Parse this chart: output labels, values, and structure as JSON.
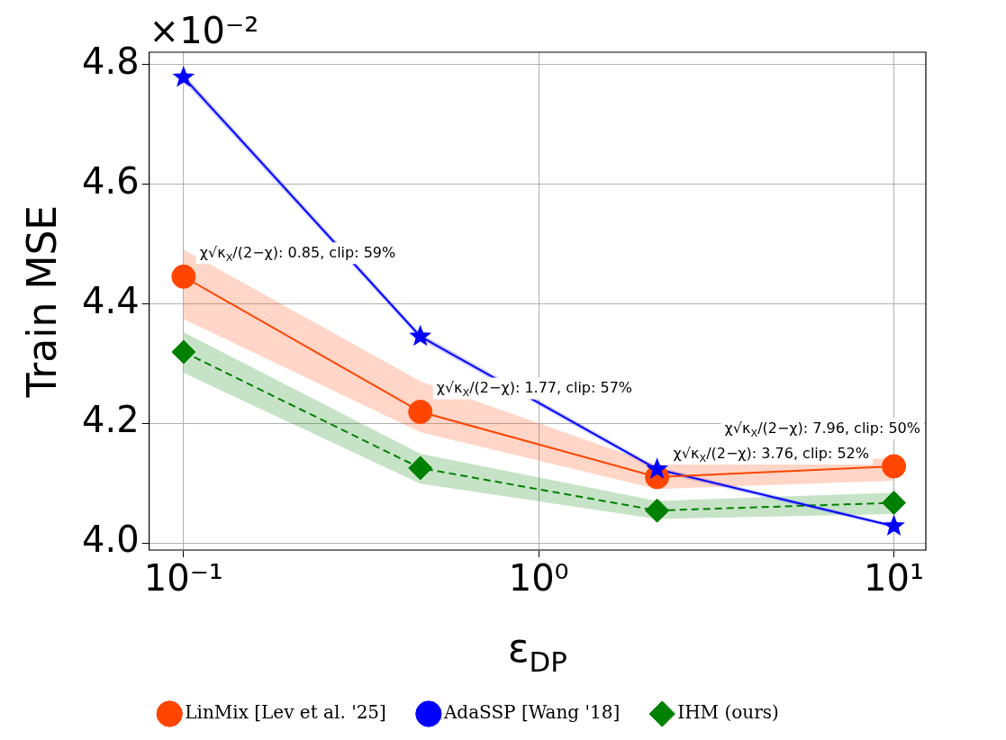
{
  "chart_data": {
    "type": "line",
    "xlabel": "ε$_{DP}$",
    "ylabel": "Train MSE",
    "x": [
      0.1,
      0.464,
      2.154,
      10
    ],
    "log": "x",
    "xlim": [
      0.08,
      12.3
    ],
    "xticks": [
      {
        "value": 0.1,
        "label": "10⁻¹"
      },
      {
        "value": 1,
        "label": "10⁰"
      },
      {
        "value": 10,
        "label": "10¹"
      }
    ],
    "ylim": [
      3.988,
      4.82
    ],
    "yticks": [
      {
        "value": 4,
        "label": "4.0"
      },
      4.2,
      4.4,
      4.6,
      4.8
    ],
    "grid": true,
    "legend": "bottom",
    "series": [
      {
        "name": "LinMix [Lev et al. '25]",
        "color": "#ff4500",
        "marker": "circle",
        "line_style": "solid",
        "values": [
          4.445,
          4.219,
          4.11,
          4.128
        ],
        "lower": [
          4.374,
          4.185,
          4.09,
          4.104
        ],
        "upper": [
          4.49,
          4.27,
          4.13,
          4.142
        ]
      },
      {
        "name": "AdaSSP [Wang '18]",
        "color": "#0000ff",
        "marker": "star",
        "line_style": "solid",
        "values": [
          4.778,
          4.345,
          4.123,
          4.028
        ],
        "lower": [
          4.772,
          4.34,
          4.119,
          4.025
        ],
        "upper": [
          4.784,
          4.35,
          4.127,
          4.031
        ]
      },
      {
        "name": "IHM (ours)",
        "color": "#008000",
        "marker": "diamond",
        "line_style": "dashed",
        "values": [
          4.319,
          4.125,
          4.054,
          4.067
        ],
        "lower": [
          4.284,
          4.099,
          4.04,
          4.048
        ],
        "upper": [
          4.352,
          4.149,
          4.07,
          4.084
        ]
      }
    ],
    "annotations": [
      "×10⁻²",
      {
        "text": "χ√κ$_{X}$/(2−χ): 0.85, clip: 59%",
        "x": 0.1,
        "y": 4.445
      },
      {
        "text": "χ√κ$_{X}$/(2−χ): 1.77, clip: 57%",
        "x": 0.464,
        "y": 4.219
      },
      {
        "text": "χ√κ$_{X}$/(2−χ): 3.76, clip: 52%",
        "x": 2.154,
        "y": 4.11
      },
      {
        "text": "χ√κ$_{X}$/(2−χ): 7.96, clip: 50%",
        "x": 10,
        "y": 4.128
      }
    ]
  }
}
